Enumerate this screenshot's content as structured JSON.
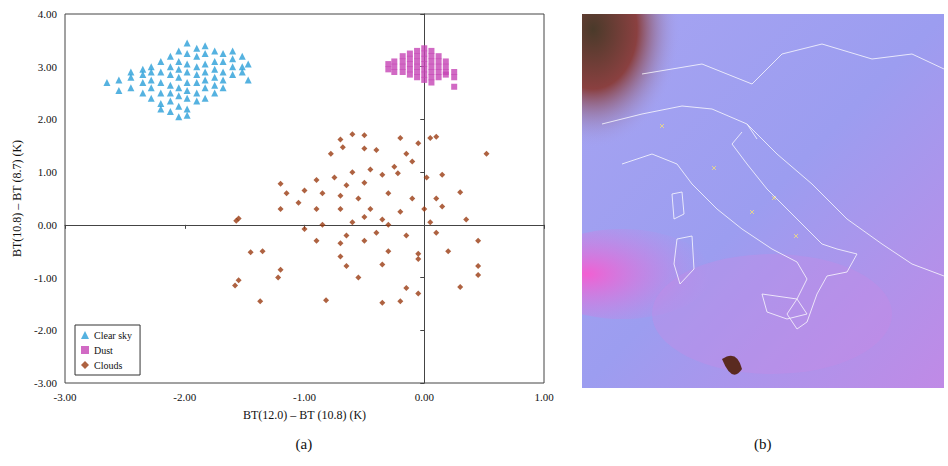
{
  "chart_data": {
    "type": "scatter",
    "panel_label": "(a)",
    "x_label": "BT(12.0) – BT (10.8) (K)",
    "y_label": "BT(10.8) – BT (8.7) (K)",
    "xlim": [
      -3,
      1
    ],
    "xticks": [
      {
        "value": -3,
        "label": "-3.00"
      },
      {
        "value": -2,
        "label": "-2.00"
      },
      {
        "value": -1,
        "label": "-1.00"
      },
      {
        "value": 0,
        "label": "0.00"
      },
      {
        "value": 1,
        "label": "1.00"
      }
    ],
    "ylim": [
      -3,
      4
    ],
    "yticks": [
      {
        "value": -3,
        "label": "-3.00"
      },
      {
        "value": -2,
        "label": "-2.00"
      },
      {
        "value": -1,
        "label": "-1.00"
      },
      {
        "value": 0,
        "label": "0.00"
      },
      {
        "value": 1,
        "label": "1.00"
      },
      {
        "value": 2,
        "label": "2.00"
      },
      {
        "value": 3,
        "label": "3.00"
      },
      {
        "value": 4,
        "label": "4.00"
      }
    ],
    "grid": false,
    "legend": "lower left",
    "series": [
      {
        "name": "Clear sky",
        "color": "#2a9fd8",
        "marker": "triangle",
        "values": [
          [
            -2.65,
            2.7
          ],
          [
            -2.55,
            2.75
          ],
          [
            -2.55,
            2.55
          ],
          [
            -2.45,
            2.9
          ],
          [
            -2.45,
            2.6
          ],
          [
            -2.45,
            2.8
          ],
          [
            -2.35,
            2.95
          ],
          [
            -2.35,
            2.7
          ],
          [
            -2.35,
            2.5
          ],
          [
            -2.35,
            2.85
          ],
          [
            -2.28,
            3.0
          ],
          [
            -2.28,
            2.75
          ],
          [
            -2.28,
            2.6
          ],
          [
            -2.28,
            2.4
          ],
          [
            -2.28,
            2.9
          ],
          [
            -2.2,
            3.1
          ],
          [
            -2.2,
            2.9
          ],
          [
            -2.2,
            2.7
          ],
          [
            -2.2,
            2.5
          ],
          [
            -2.2,
            2.3
          ],
          [
            -2.2,
            2.2
          ],
          [
            -2.12,
            3.2
          ],
          [
            -2.12,
            3.0
          ],
          [
            -2.12,
            2.85
          ],
          [
            -2.12,
            2.65
          ],
          [
            -2.12,
            2.5
          ],
          [
            -2.12,
            2.35
          ],
          [
            -2.12,
            2.15
          ],
          [
            -2.05,
            3.3
          ],
          [
            -2.05,
            3.1
          ],
          [
            -2.05,
            2.95
          ],
          [
            -2.05,
            2.8
          ],
          [
            -2.05,
            2.6
          ],
          [
            -2.05,
            2.45
          ],
          [
            -2.05,
            2.25
          ],
          [
            -2.05,
            2.05
          ],
          [
            -1.98,
            3.45
          ],
          [
            -1.98,
            3.25
          ],
          [
            -1.98,
            3.05
          ],
          [
            -1.98,
            2.9
          ],
          [
            -1.98,
            2.7
          ],
          [
            -1.98,
            2.55
          ],
          [
            -1.98,
            2.4
          ],
          [
            -1.98,
            2.2
          ],
          [
            -1.98,
            2.08
          ],
          [
            -1.9,
            3.35
          ],
          [
            -1.9,
            3.2
          ],
          [
            -1.9,
            3.0
          ],
          [
            -1.9,
            2.85
          ],
          [
            -1.9,
            2.7
          ],
          [
            -1.9,
            2.5
          ],
          [
            -1.9,
            2.35
          ],
          [
            -1.83,
            3.4
          ],
          [
            -1.83,
            3.25
          ],
          [
            -1.83,
            3.05
          ],
          [
            -1.83,
            2.9
          ],
          [
            -1.83,
            2.75
          ],
          [
            -1.83,
            2.6
          ],
          [
            -1.83,
            2.4
          ],
          [
            -1.75,
            3.3
          ],
          [
            -1.75,
            3.1
          ],
          [
            -1.75,
            2.95
          ],
          [
            -1.75,
            2.8
          ],
          [
            -1.75,
            2.65
          ],
          [
            -1.75,
            2.5
          ],
          [
            -1.68,
            3.25
          ],
          [
            -1.68,
            3.1
          ],
          [
            -1.68,
            2.9
          ],
          [
            -1.68,
            2.75
          ],
          [
            -1.68,
            2.6
          ],
          [
            -1.6,
            3.3
          ],
          [
            -1.6,
            3.15
          ],
          [
            -1.6,
            3.0
          ],
          [
            -1.6,
            2.85
          ],
          [
            -1.52,
            3.2
          ],
          [
            -1.52,
            3.0
          ],
          [
            -1.52,
            2.9
          ],
          [
            -1.47,
            3.05
          ],
          [
            -1.47,
            2.75
          ]
        ]
      },
      {
        "name": "Dust",
        "color": "#c545b5",
        "marker": "square",
        "values": [
          [
            -0.3,
            3.05
          ],
          [
            -0.3,
            2.95
          ],
          [
            -0.25,
            3.1
          ],
          [
            -0.25,
            3.0
          ],
          [
            -0.25,
            2.9
          ],
          [
            -0.18,
            3.2
          ],
          [
            -0.18,
            3.1
          ],
          [
            -0.18,
            3.0
          ],
          [
            -0.18,
            2.9
          ],
          [
            -0.12,
            3.25
          ],
          [
            -0.12,
            3.15
          ],
          [
            -0.12,
            3.05
          ],
          [
            -0.12,
            2.95
          ],
          [
            -0.12,
            2.85
          ],
          [
            -0.06,
            3.3
          ],
          [
            -0.06,
            3.2
          ],
          [
            -0.06,
            3.1
          ],
          [
            -0.06,
            3.0
          ],
          [
            -0.06,
            2.9
          ],
          [
            -0.06,
            2.8
          ],
          [
            0.0,
            3.35
          ],
          [
            0.0,
            3.25
          ],
          [
            0.0,
            3.15
          ],
          [
            0.0,
            3.05
          ],
          [
            0.0,
            2.95
          ],
          [
            0.0,
            2.85
          ],
          [
            0.0,
            2.75
          ],
          [
            0.06,
            3.3
          ],
          [
            0.06,
            3.2
          ],
          [
            0.06,
            3.1
          ],
          [
            0.06,
            3.0
          ],
          [
            0.06,
            2.9
          ],
          [
            0.06,
            2.8
          ],
          [
            0.06,
            2.7
          ],
          [
            0.12,
            3.2
          ],
          [
            0.12,
            3.1
          ],
          [
            0.12,
            3.0
          ],
          [
            0.12,
            2.9
          ],
          [
            0.12,
            2.8
          ],
          [
            0.18,
            3.1
          ],
          [
            0.18,
            3.0
          ],
          [
            0.18,
            2.9
          ],
          [
            0.18,
            2.85
          ],
          [
            0.25,
            2.9
          ],
          [
            0.25,
            2.8
          ],
          [
            0.25,
            2.62
          ]
        ]
      },
      {
        "name": "Clouds",
        "color": "#9a3b12",
        "marker": "diamond",
        "values": [
          [
            0.52,
            1.35
          ],
          [
            0.1,
            1.67
          ],
          [
            0.05,
            1.65
          ],
          [
            -0.05,
            1.55
          ],
          [
            -0.2,
            1.65
          ],
          [
            -0.5,
            1.7
          ],
          [
            -0.6,
            1.72
          ],
          [
            -0.7,
            1.62
          ],
          [
            -0.68,
            1.47
          ],
          [
            -0.78,
            1.35
          ],
          [
            -0.5,
            1.45
          ],
          [
            -0.4,
            1.42
          ],
          [
            -0.25,
            1.1
          ],
          [
            -0.15,
            1.35
          ],
          [
            -0.1,
            1.2
          ],
          [
            -0.22,
            0.98
          ],
          [
            0.02,
            0.9
          ],
          [
            0.15,
            0.95
          ],
          [
            -0.35,
            0.95
          ],
          [
            -0.45,
            1.05
          ],
          [
            -0.6,
            1.0
          ],
          [
            -0.75,
            0.9
          ],
          [
            -0.9,
            0.85
          ],
          [
            -0.65,
            0.75
          ],
          [
            -0.5,
            0.8
          ],
          [
            -0.85,
            0.6
          ],
          [
            -1.0,
            0.65
          ],
          [
            -1.2,
            0.78
          ],
          [
            -1.15,
            0.6
          ],
          [
            -1.05,
            0.42
          ],
          [
            -0.7,
            0.55
          ],
          [
            -0.55,
            0.5
          ],
          [
            -0.3,
            0.6
          ],
          [
            -0.1,
            0.5
          ],
          [
            0.1,
            0.5
          ],
          [
            0.3,
            0.62
          ],
          [
            -1.2,
            0.3
          ],
          [
            -0.9,
            0.3
          ],
          [
            -0.7,
            0.3
          ],
          [
            -0.45,
            0.3
          ],
          [
            -0.2,
            0.25
          ],
          [
            0.0,
            0.3
          ],
          [
            0.15,
            0.35
          ],
          [
            -0.5,
            0.15
          ],
          [
            -0.35,
            0.1
          ],
          [
            -0.6,
            0.05
          ],
          [
            -0.85,
            0.0
          ],
          [
            -1.0,
            -0.08
          ],
          [
            -0.3,
            0.0
          ],
          [
            0.05,
            0.05
          ],
          [
            0.35,
            0.1
          ],
          [
            -1.55,
            0.12
          ],
          [
            -1.57,
            0.08
          ],
          [
            -0.65,
            -0.2
          ],
          [
            -0.4,
            -0.15
          ],
          [
            -0.15,
            -0.2
          ],
          [
            0.1,
            -0.15
          ],
          [
            -0.9,
            -0.3
          ],
          [
            -0.7,
            -0.35
          ],
          [
            -0.5,
            -0.3
          ],
          [
            0.45,
            -0.3
          ],
          [
            -0.3,
            -0.5
          ],
          [
            -0.05,
            -0.55
          ],
          [
            0.2,
            -0.5
          ],
          [
            -1.35,
            -0.5
          ],
          [
            -1.45,
            -0.52
          ],
          [
            -0.7,
            -0.6
          ],
          [
            -0.05,
            -0.65
          ],
          [
            -0.65,
            -0.78
          ],
          [
            -0.35,
            -0.75
          ],
          [
            0.45,
            -0.78
          ],
          [
            -1.2,
            -0.85
          ],
          [
            -1.55,
            -1.05
          ],
          [
            -1.58,
            -1.15
          ],
          [
            -1.22,
            -1.0
          ],
          [
            0.45,
            -0.95
          ],
          [
            -0.55,
            -1.0
          ],
          [
            -0.15,
            -1.2
          ],
          [
            0.3,
            -1.18
          ],
          [
            -1.37,
            -1.45
          ],
          [
            -0.82,
            -1.43
          ],
          [
            -0.35,
            -1.48
          ],
          [
            -0.2,
            -1.45
          ],
          [
            -0.05,
            -1.3
          ]
        ]
      }
    ]
  },
  "image": {
    "panel_label": "(b)"
  }
}
